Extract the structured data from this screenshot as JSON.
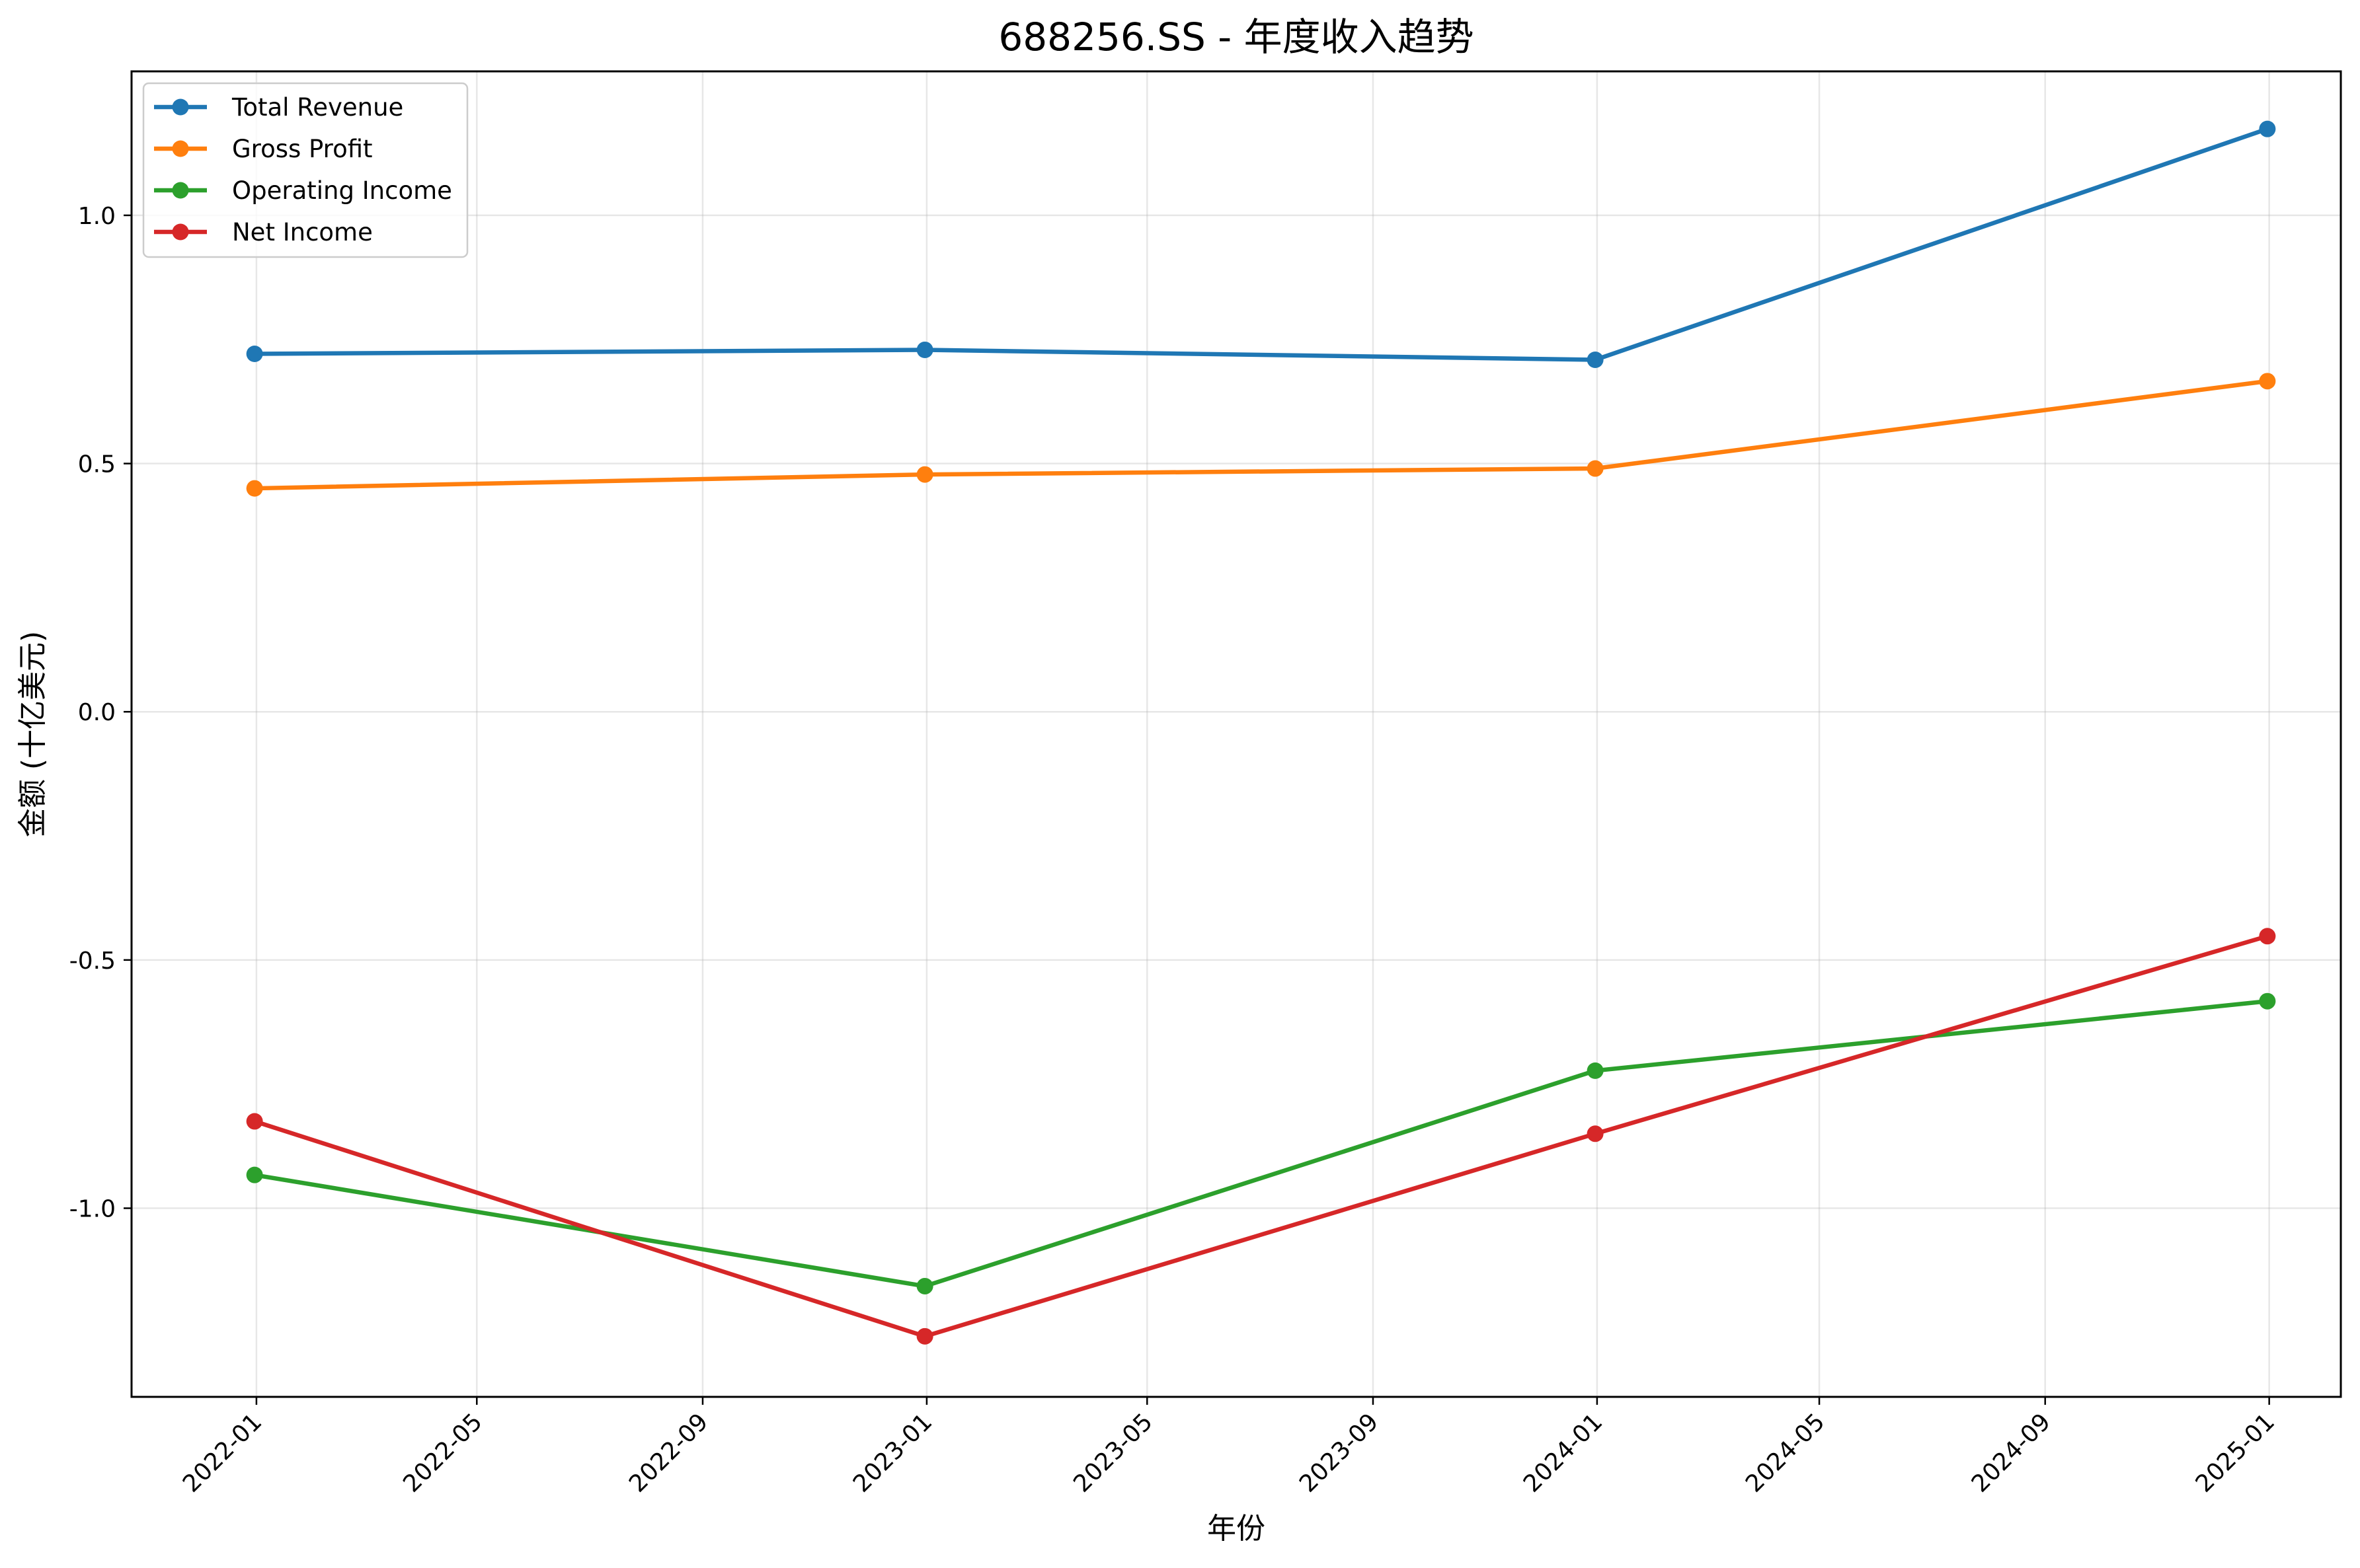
{
  "chart_data": {
    "type": "line",
    "title": "688256.SS - 年度收入趋势",
    "xlabel": "年份",
    "ylabel": "金额 (十亿美元)",
    "x_ticks": [
      "2022-01",
      "2022-05",
      "2022-09",
      "2023-01",
      "2023-05",
      "2023-09",
      "2024-01",
      "2024-05",
      "2024-09",
      "2025-01"
    ],
    "y_ticks": [
      "-1.0",
      "-0.5",
      "0.0",
      "0.5",
      "1.0"
    ],
    "x": [
      "2021-12-31",
      "2022-12-31",
      "2023-12-31",
      "2024-12-31"
    ],
    "xlim": [
      "2021-10-25",
      "2025-02-09"
    ],
    "ylim": [
      -1.38,
      1.29
    ],
    "grid": true,
    "legend_position": "top-left",
    "series": [
      {
        "name": "Total Revenue",
        "color": "#1f77b4",
        "values": [
          0.721,
          0.729,
          0.709,
          1.174
        ]
      },
      {
        "name": "Gross Profit",
        "color": "#ff7f0e",
        "values": [
          0.45,
          0.478,
          0.49,
          0.666
        ]
      },
      {
        "name": "Operating Income",
        "color": "#2ca02c",
        "values": [
          -0.933,
          -1.157,
          -0.723,
          -0.583
        ]
      },
      {
        "name": "Net Income",
        "color": "#d62728",
        "values": [
          -0.825,
          -1.258,
          -0.85,
          -0.452
        ]
      }
    ]
  }
}
